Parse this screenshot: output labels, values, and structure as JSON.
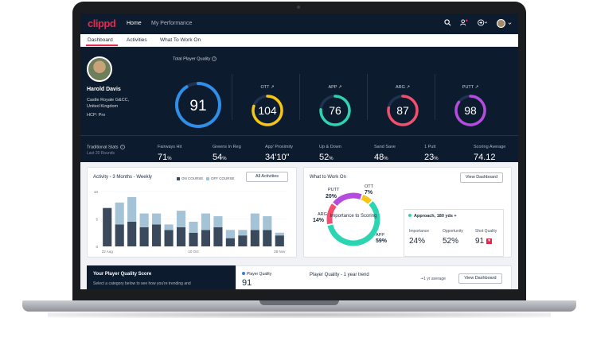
{
  "nav": {
    "logo": "clippd",
    "links": [
      "Home",
      "My Performance"
    ]
  },
  "tabs": [
    "Dashboard",
    "Activities",
    "What To Work On"
  ],
  "profile": {
    "name": "Harold Davis",
    "club": "Castle Royale G&CC, United Kingdom",
    "hcp": "HCP: Pro"
  },
  "quality": {
    "label": "Total Player Quality",
    "total": 91,
    "total_level": 0.91,
    "gauges": [
      {
        "label": "OTT ↗",
        "value": 104,
        "level": 0.8,
        "color": "#f5c518"
      },
      {
        "label": "APP ↗",
        "value": 76,
        "level": 0.76,
        "color": "#2dd4b1"
      },
      {
        "label": "ARG ↗",
        "value": 87,
        "level": 0.78,
        "color": "#f0506e"
      },
      {
        "label": "PUTT ↗",
        "value": 98,
        "level": 0.85,
        "color": "#b64be0"
      }
    ]
  },
  "traditional": {
    "label": "Traditional Stats",
    "sub": "Last 20 Rounds",
    "stats": [
      {
        "label": "Fairways Hit",
        "value": "71",
        "unit": "%"
      },
      {
        "label": "Greens In Reg",
        "value": "54",
        "unit": "%"
      },
      {
        "label": "App' Proximity",
        "value": "34'10\"",
        "unit": ""
      },
      {
        "label": "Up & Down",
        "value": "52",
        "unit": "%"
      },
      {
        "label": "Sand Save",
        "value": "48",
        "unit": "%"
      },
      {
        "label": "1 Putt",
        "value": "23",
        "unit": "%"
      },
      {
        "label": "Scoring Average",
        "value": "74.12",
        "unit": ""
      }
    ]
  },
  "activity": {
    "title": "Activity - 3 Months - Weekly",
    "legend_on": "ON COURSE",
    "legend_off": "OFF COURSE",
    "button": "All Activities",
    "chart_data": {
      "type": "bar",
      "stacked": true,
      "ylim": [
        0,
        10
      ],
      "yticks": [
        "10",
        "5",
        "0"
      ],
      "xticks": [
        "22 Aug",
        "10 Oct",
        "28 Nov"
      ],
      "series": [
        {
          "name": "ON COURSE",
          "color": "#3a4a5c",
          "values": [
            7,
            4,
            4.5,
            3.5,
            4,
            3,
            3.5,
            2.5,
            3,
            3.5,
            1.5,
            2,
            3,
            3,
            2
          ]
        },
        {
          "name": "OFF COURSE",
          "color": "#a5c3d6",
          "values": [
            0,
            4,
            4.5,
            2.5,
            2,
            1,
            3,
            2,
            3,
            2,
            1.5,
            1,
            3,
            2.5,
            0.5
          ]
        }
      ]
    }
  },
  "wtw": {
    "title": "What to Work On",
    "button": "View Dashboard",
    "center": "Importance to Scoring",
    "chart_data": {
      "type": "pie",
      "donut": true,
      "categories": [
        "APP",
        "OTT",
        "PUTT",
        "ARG"
      ],
      "values": [
        59,
        7,
        20,
        14
      ],
      "colors": [
        "#2dd4b1",
        "#f5c518",
        "#b64be0",
        "#f0506e"
      ]
    },
    "labels": [
      {
        "cat": "OTT",
        "val": "7%"
      },
      {
        "cat": "PUTT",
        "val": "20%"
      },
      {
        "cat": "ARG",
        "val": "14%"
      },
      {
        "cat": "APP",
        "val": "59%"
      }
    ],
    "detail": {
      "title": "Approach, 180 yds +",
      "importance_label": "Importance",
      "importance": "24%",
      "opportunity_label": "Opportunity",
      "opportunity": "52%",
      "shot_label": "Shot Quality",
      "shot": "91",
      "badge": "▼"
    }
  },
  "bottom": {
    "score_title": "Your Player Quality Score",
    "score_sub": "Select a category below to see how you're trending and",
    "pq_label": "Player Quality",
    "pq_value": "91",
    "trend_title": "Player Quality - 1 year trend",
    "avg_label": "1 yr average",
    "button": "View Dashboard"
  }
}
